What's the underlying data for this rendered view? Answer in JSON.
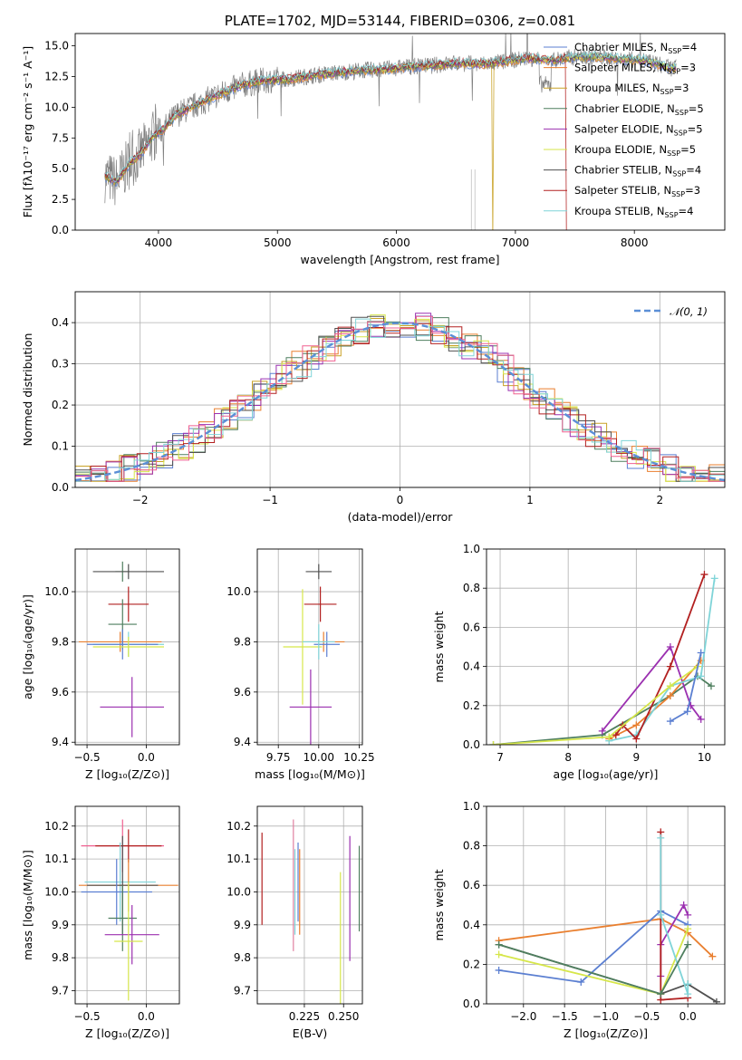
{
  "chart_data": [
    {
      "id": "spectrum",
      "type": "line",
      "title": "PLATE=1702, MJD=53144, FIBERID=0306, z=0.081",
      "xlabel": "wavelength [Angstrom, rest frame]",
      "ylabel": "Flux [fλ10⁻¹⁷ erg cm⁻² s⁻¹ A⁻¹]",
      "xlim": [
        3300,
        8760
      ],
      "ylim": [
        0,
        16
      ],
      "xticks": [
        "4000",
        "5000",
        "6000",
        "7000",
        "8000"
      ],
      "xtick_values": [
        4000,
        5000,
        6000,
        7000,
        8000
      ],
      "yticks": [
        "0.0",
        "2.5",
        "5.0",
        "7.5",
        "10.0",
        "12.5",
        "15.0"
      ],
      "ytick_values": [
        0,
        2.5,
        5,
        7.5,
        10,
        12.5,
        15
      ],
      "data_color": "#808080",
      "model_x": [
        3550,
        3650,
        3750,
        3850,
        3950,
        4050,
        4150,
        4300,
        4500,
        4700,
        4900,
        5100,
        5300,
        5500,
        5700,
        5900,
        6100,
        6300,
        6500,
        6700,
        6900,
        7100,
        7300,
        7500,
        7700,
        7900,
        8100,
        8300
      ],
      "model_y": [
        4.4,
        3.9,
        5.4,
        6.2,
        7.6,
        8.3,
        9.4,
        10.1,
        11.0,
        11.8,
        12.2,
        12.3,
        12.6,
        12.8,
        13.0,
        13.1,
        13.3,
        13.4,
        13.6,
        13.5,
        13.7,
        14.0,
        13.8,
        14.1,
        14.1,
        13.9,
        13.8,
        13.2
      ],
      "legend": [
        {
          "label": "Chabrier MILES, N_SSP=4",
          "color": "#5b7fd1"
        },
        {
          "label": "Salpeter MILES, N_SSP=3",
          "color": "#e97f2f"
        },
        {
          "label": "Kroupa MILES, N_SSP=3",
          "color": "#c9a227"
        },
        {
          "label": "Chabrier ELODIE, N_SSP=5",
          "color": "#4f7f5f"
        },
        {
          "label": "Salpeter ELODIE, N_SSP=5",
          "color": "#9b30b0"
        },
        {
          "label": "Kroupa ELODIE, N_SSP=5",
          "color": "#d6e64a"
        },
        {
          "label": "Chabrier STELIB, N_SSP=4",
          "color": "#505050"
        },
        {
          "label": "Salpeter STELIB, N_SSP=3",
          "color": "#b22020"
        },
        {
          "label": "Kroupa STELIB, N_SSP=4",
          "color": "#7fd4d8"
        }
      ],
      "legend_position": "right",
      "legend_parts": [
        {
          "name": "Chabrier MILES, N",
          "sub": "SSP",
          "tail": "=4"
        },
        {
          "name": "Salpeter MILES, N",
          "sub": "SSP",
          "tail": "=3"
        },
        {
          "name": "Kroupa MILES, N",
          "sub": "SSP",
          "tail": "=3"
        },
        {
          "name": "Chabrier ELODIE, N",
          "sub": "SSP",
          "tail": "=5"
        },
        {
          "name": "Salpeter ELODIE, N",
          "sub": "SSP",
          "tail": "=5"
        },
        {
          "name": "Kroupa ELODIE, N",
          "sub": "SSP",
          "tail": "=5"
        },
        {
          "name": "Chabrier STELIB, N",
          "sub": "SSP",
          "tail": "=4"
        },
        {
          "name": "Salpeter STELIB, N",
          "sub": "SSP",
          "tail": "=3"
        },
        {
          "name": "Kroupa STELIB, N",
          "sub": "SSP",
          "tail": "=4"
        }
      ]
    },
    {
      "id": "residuals",
      "type": "line",
      "xlabel": "(data-model)/error",
      "ylabel": "Normed distribution",
      "xlim": [
        -2.5,
        2.5
      ],
      "ylim": [
        0,
        0.475
      ],
      "xticks": [
        "−2",
        "−1",
        "0",
        "1",
        "2"
      ],
      "xtick_values": [
        -2,
        -1,
        0,
        1,
        2
      ],
      "yticks": [
        "0.0",
        "0.1",
        "0.2",
        "0.3",
        "0.4"
      ],
      "ytick_values": [
        0,
        0.1,
        0.2,
        0.3,
        0.4
      ],
      "grid": true,
      "legend": [
        {
          "label": "𝒩(0, 1)",
          "color": "#5b8fd6"
        }
      ],
      "legend_position": "top-right",
      "gaussian_mu": 0,
      "gaussian_sigma": 1
    },
    {
      "id": "age-vs-Z",
      "type": "scatter",
      "xlabel": "Z [log₁₀(Z/Z⊙)]",
      "ylabel": "age  [log₁₀(age/yr)]",
      "xlim": [
        -0.6,
        0.28
      ],
      "ylim": [
        9.39,
        10.17
      ],
      "xticks": [
        "−0.5",
        "0.0"
      ],
      "xtick_values": [
        -0.5,
        0.0
      ],
      "yticks": [
        "9.4",
        "9.6",
        "9.8",
        "10.0"
      ],
      "ytick_values": [
        9.4,
        9.6,
        9.8,
        10.0
      ],
      "grid": true,
      "points": [
        {
          "x": -0.2,
          "xerr": 0.06,
          "y": 10.08,
          "yerr": 0.04,
          "color": "#4f7f5f"
        },
        {
          "x": -0.15,
          "xerr": 0.3,
          "y": 10.08,
          "yerr": 0.03,
          "color": "#505050"
        },
        {
          "x": -0.15,
          "xerr": 0.17,
          "y": 9.95,
          "yerr": 0.07,
          "color": "#b22020"
        },
        {
          "x": -0.2,
          "xerr": 0.12,
          "y": 9.87,
          "yerr": 0.1,
          "color": "#4f7f5f"
        },
        {
          "x": -0.22,
          "xerr": 0.35,
          "y": 9.8,
          "yerr": 0.04,
          "color": "#e97f2f"
        },
        {
          "x": -0.15,
          "xerr": 0.3,
          "y": 9.79,
          "yerr": 0.05,
          "color": "#7fd4d8"
        },
        {
          "x": -0.2,
          "xerr": 0.3,
          "y": 9.79,
          "yerr": 0.06,
          "color": "#5b7fd1"
        },
        {
          "x": -0.15,
          "xerr": 0.3,
          "y": 9.78,
          "yerr": 0.04,
          "color": "#d6e64a"
        },
        {
          "x": -0.12,
          "xerr": 0.27,
          "y": 9.54,
          "yerr": 0.12,
          "color": "#9b30b0"
        }
      ]
    },
    {
      "id": "age-vs-mass",
      "type": "scatter",
      "xlabel": "mass [log₁₀(M/M⊙)]",
      "xlim": [
        9.62,
        10.27
      ],
      "ylim": [
        9.39,
        10.17
      ],
      "xticks": [
        "9.75",
        "10.00",
        "10.25"
      ],
      "xtick_values": [
        9.75,
        10.0,
        10.25
      ],
      "yticks": [
        "9.4",
        "9.6",
        "9.8",
        "10.0"
      ],
      "ytick_values": [
        9.4,
        9.6,
        9.8,
        10.0
      ],
      "grid": true,
      "points": [
        {
          "x": 10.0,
          "xerr": 0.08,
          "y": 10.08,
          "yerr": 0.03,
          "color": "#505050"
        },
        {
          "x": 10.01,
          "xerr": 0.1,
          "y": 9.95,
          "yerr": 0.07,
          "color": "#b22020"
        },
        {
          "x": 10.03,
          "xerr": 0.13,
          "y": 9.8,
          "yerr": 0.04,
          "color": "#e97f2f"
        },
        {
          "x": 9.9,
          "xerr": 0.12,
          "y": 9.78,
          "yerr": 0.23,
          "color": "#d6e64a"
        },
        {
          "x": 9.95,
          "xerr": 0.13,
          "y": 9.54,
          "yerr": 0.15,
          "color": "#9b30b0"
        },
        {
          "x": 10.05,
          "xerr": 0.08,
          "y": 9.79,
          "yerr": 0.05,
          "color": "#5b7fd1"
        },
        {
          "x": 10.0,
          "xerr": 0.1,
          "y": 9.8,
          "yerr": 0.07,
          "color": "#7fd4d8"
        }
      ]
    },
    {
      "id": "weight-vs-age",
      "type": "line",
      "xlabel": "age  [log₁₀(age/yr)]",
      "ylabel": "mass weight",
      "xlim": [
        6.8,
        10.3
      ],
      "ylim": [
        0,
        1
      ],
      "xticks": [
        "7",
        "8",
        "9",
        "10"
      ],
      "xtick_values": [
        7,
        8,
        9,
        10
      ],
      "yticks": [
        "0.0",
        "0.2",
        "0.4",
        "0.6",
        "0.8",
        "1.0"
      ],
      "ytick_values": [
        0,
        0.2,
        0.4,
        0.6,
        0.8,
        1.0
      ],
      "grid": true,
      "series": [
        {
          "x": [
            6.9,
            8.5,
            9.5,
            9.9,
            10.1
          ],
          "y": [
            0.0,
            0.05,
            0.25,
            0.35,
            0.3
          ],
          "color": "#4f7f5f"
        },
        {
          "x": [
            8.5,
            9.5,
            9.8,
            9.95
          ],
          "y": [
            0.07,
            0.5,
            0.2,
            0.13
          ],
          "color": "#9b30b0"
        },
        {
          "x": [
            8.6,
            9.0,
            9.5,
            9.95
          ],
          "y": [
            0.03,
            0.1,
            0.25,
            0.43
          ],
          "color": "#e97f2f"
        },
        {
          "x": [
            8.6,
            9.0,
            9.5,
            9.95,
            10.15
          ],
          "y": [
            0.02,
            0.05,
            0.3,
            0.35,
            0.85
          ],
          "color": "#7fd4d8"
        },
        {
          "x": [
            8.7,
            8.8,
            9.0,
            9.5,
            10.0
          ],
          "y": [
            0.05,
            0.1,
            0.03,
            0.4,
            0.87
          ],
          "color": "#b22020"
        },
        {
          "x": [
            6.9,
            8.6,
            9.5,
            9.9
          ],
          "y": [
            0.0,
            0.04,
            0.3,
            0.4
          ],
          "color": "#d6e64a"
        },
        {
          "x": [
            9.5,
            9.75,
            9.95
          ],
          "y": [
            0.12,
            0.17,
            0.47
          ],
          "color": "#5b7fd1"
        }
      ]
    },
    {
      "id": "mass-vs-Z",
      "type": "scatter",
      "xlabel": "Z [log₁₀(Z/Z⊙)]",
      "ylabel": "mass [log₁₀(M/M⊙)]",
      "xlim": [
        -0.6,
        0.28
      ],
      "ylim": [
        9.66,
        10.26
      ],
      "xticks": [
        "−0.5",
        "0.0"
      ],
      "xtick_values": [
        -0.5,
        0.0
      ],
      "yticks": [
        "9.7",
        "9.8",
        "9.9",
        "10.0",
        "10.1",
        "10.2"
      ],
      "ytick_values": [
        9.7,
        9.8,
        9.9,
        10.0,
        10.1,
        10.2
      ],
      "grid": true,
      "points": [
        {
          "x": -0.2,
          "xerr": 0.35,
          "y": 10.14,
          "yerr": 0.08,
          "color": "#f06090"
        },
        {
          "x": -0.15,
          "xerr": 0.28,
          "y": 10.14,
          "yerr": 0.05,
          "color": "#b22020"
        },
        {
          "x": -0.22,
          "xerr": 0.3,
          "y": 10.03,
          "yerr": 0.12,
          "color": "#7fd4d8"
        },
        {
          "x": -0.15,
          "xerr": 0.42,
          "y": 10.02,
          "yerr": 0.08,
          "color": "#e97f2f"
        },
        {
          "x": -0.2,
          "xerr": 0.3,
          "y": 10.02,
          "yerr": 0.15,
          "color": "#505050"
        },
        {
          "x": -0.25,
          "xerr": 0.3,
          "y": 10.0,
          "yerr": 0.1,
          "color": "#5b7fd1"
        },
        {
          "x": -0.2,
          "xerr": 0.12,
          "y": 9.92,
          "yerr": 0.1,
          "color": "#4f7f5f"
        },
        {
          "x": -0.12,
          "xerr": 0.23,
          "y": 9.87,
          "yerr": 0.09,
          "color": "#9b30b0"
        },
        {
          "x": -0.15,
          "xerr": 0.12,
          "y": 9.85,
          "yerr": 0.18,
          "color": "#d6e64a"
        }
      ]
    },
    {
      "id": "mass-vs-EBV",
      "type": "scatter",
      "xlabel": "E(B-V)",
      "xlim": [
        0.195,
        0.262
      ],
      "ylim": [
        9.66,
        10.26
      ],
      "xticks": [
        "0.225",
        "0.250"
      ],
      "xtick_values": [
        0.225,
        0.25
      ],
      "yticks": [
        "9.7",
        "9.8",
        "9.9",
        "10.0",
        "10.1",
        "10.2"
      ],
      "ytick_values": [
        9.7,
        9.8,
        9.9,
        10.0,
        10.1,
        10.2
      ],
      "grid": true,
      "points": [
        {
          "x": 0.198,
          "y": 10.04,
          "yerr": 0.14,
          "color": "#b22020"
        },
        {
          "x": 0.218,
          "y": 10.02,
          "yerr": 0.2,
          "color": "#e080a0"
        },
        {
          "x": 0.219,
          "y": 10.0,
          "yerr": 0.13,
          "color": "#7fd4d8"
        },
        {
          "x": 0.222,
          "y": 10.0,
          "yerr": 0.13,
          "color": "#e97f2f"
        },
        {
          "x": 0.221,
          "y": 10.03,
          "yerr": 0.12,
          "color": "#5b7fd1"
        },
        {
          "x": 0.248,
          "y": 9.86,
          "yerr": 0.2,
          "color": "#d6e64a"
        },
        {
          "x": 0.254,
          "y": 9.98,
          "yerr": 0.19,
          "color": "#9b30b0"
        },
        {
          "x": 0.26,
          "y": 10.01,
          "yerr": 0.13,
          "color": "#4f7f5f"
        }
      ]
    },
    {
      "id": "weight-vs-Z",
      "type": "line",
      "xlabel": "Z [log₁₀(Z/Z⊙)]",
      "ylabel": "mass weight",
      "xlim": [
        -2.45,
        0.45
      ],
      "ylim": [
        0,
        1
      ],
      "xticks": [
        "−2.0",
        "−1.5",
        "−1.0",
        "−0.5",
        "0.0"
      ],
      "xtick_values": [
        -2.0,
        -1.5,
        -1.0,
        -0.5,
        0.0
      ],
      "yticks": [
        "0.0",
        "0.2",
        "0.4",
        "0.6",
        "0.8",
        "1.0"
      ],
      "ytick_values": [
        0,
        0.2,
        0.4,
        0.6,
        0.8,
        1.0
      ],
      "grid": true,
      "series": [
        {
          "x": [
            -2.3,
            -0.33,
            0.0,
            0.35
          ],
          "y": [
            0.3,
            0.05,
            0.1,
            0.01
          ],
          "color": "#505050"
        },
        {
          "x": [
            -2.3,
            -0.33,
            0.0,
            0.3
          ],
          "y": [
            0.32,
            0.43,
            0.36,
            0.24
          ],
          "color": "#e97f2f"
        },
        {
          "x": [
            -2.3,
            -1.3,
            -0.33,
            0.0
          ],
          "y": [
            0.17,
            0.11,
            0.47,
            0.4
          ],
          "color": "#5b7fd1"
        },
        {
          "x": [
            -2.3,
            -0.33,
            0.0
          ],
          "y": [
            0.25,
            0.05,
            0.38
          ],
          "color": "#d6e64a"
        },
        {
          "x": [
            -0.33,
            -0.33,
            -0.05,
            0.0
          ],
          "y": [
            0.14,
            0.3,
            0.5,
            0.45
          ],
          "color": "#9b30b0"
        },
        {
          "x": [
            -0.33,
            -0.33,
            0.0
          ],
          "y": [
            0.87,
            0.02,
            0.03
          ],
          "color": "#b22020"
        },
        {
          "x": [
            -0.33,
            -0.33,
            0.0,
            0.0
          ],
          "y": [
            0.84,
            0.45,
            0.05,
            0.1
          ],
          "color": "#7fd4d8"
        },
        {
          "x": [
            -2.3,
            -0.33,
            0.0
          ],
          "y": [
            0.3,
            0.05,
            0.3
          ],
          "color": "#4f7f5f"
        }
      ]
    }
  ]
}
